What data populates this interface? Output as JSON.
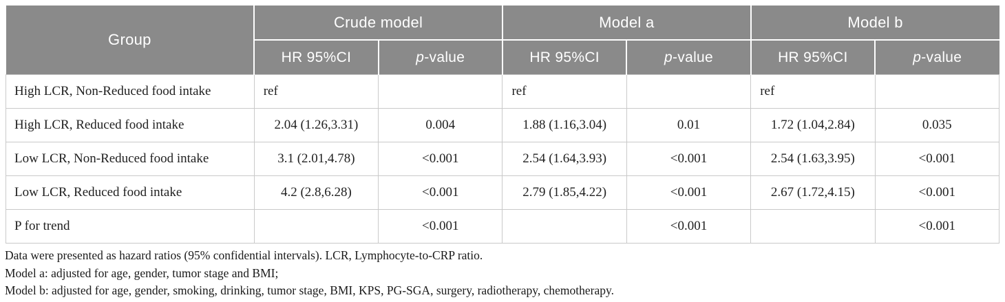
{
  "colors": {
    "header_bg": "#8a8a8a",
    "header_text": "#ffffff",
    "body_border": "#c9c9c9",
    "body_text": "#1f1f1f"
  },
  "table": {
    "group_header": "Group",
    "model_headers": [
      "Crude model",
      "Model a",
      "Model b"
    ],
    "subheaders": {
      "hr": "HR 95%CI",
      "p_italic": "p",
      "p_rest": "-value"
    },
    "rows": [
      {
        "group": "High LCR, Non-Reduced food intake",
        "crude_hr": "ref",
        "crude_p": "",
        "a_hr": "ref",
        "a_p": "",
        "b_hr": "ref",
        "b_p": ""
      },
      {
        "group": "High LCR, Reduced food intake",
        "crude_hr": "2.04 (1.26,3.31)",
        "crude_p": "0.004",
        "a_hr": "1.88 (1.16,3.04)",
        "a_p": "0.01",
        "b_hr": "1.72 (1.04,2.84)",
        "b_p": "0.035"
      },
      {
        "group": "Low LCR, Non-Reduced food intake",
        "crude_hr": "3.1 (2.01,4.78)",
        "crude_p": "<0.001",
        "a_hr": "2.54 (1.64,3.93)",
        "a_p": "<0.001",
        "b_hr": "2.54 (1.63,3.95)",
        "b_p": "<0.001"
      },
      {
        "group": "Low LCR, Reduced food intake",
        "crude_hr": "4.2 (2.8,6.28)",
        "crude_p": "<0.001",
        "a_hr": "2.79 (1.85,4.22)",
        "a_p": "<0.001",
        "b_hr": "2.67 (1.72,4.15)",
        "b_p": "<0.001"
      },
      {
        "group": "P for trend",
        "crude_hr": "",
        "crude_p": "<0.001",
        "a_hr": "",
        "a_p": "<0.001",
        "b_hr": "",
        "b_p": "<0.001"
      }
    ]
  },
  "footnotes": [
    "Data were presented as hazard ratios (95% confidential intervals). LCR, Lymphocyte-to-CRP ratio.",
    "Model a: adjusted for age, gender, tumor stage and BMI;",
    "Model b: adjusted for age, gender, smoking, drinking, tumor stage, BMI, KPS, PG-SGA, surgery, radiotherapy, chemotherapy."
  ]
}
